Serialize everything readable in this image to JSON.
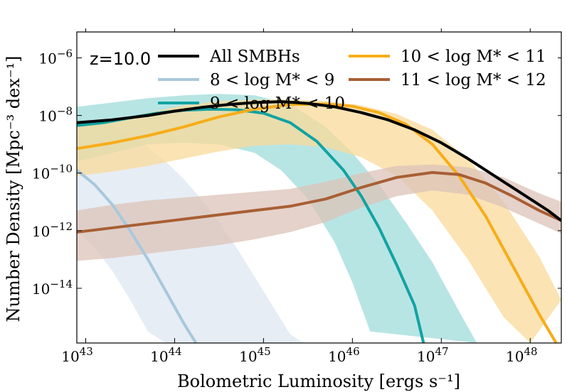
{
  "chart_data": {
    "type": "line",
    "annotation": "z=10.0",
    "xlabel": "Bolometric Luminosity [ergs s⁻¹]",
    "ylabel": "Number Density [Mpc⁻³ dex⁻¹]",
    "xscale": "log",
    "yscale": "log",
    "xlim": [
      42.9,
      48.35
    ],
    "ylim": [
      -15.9,
      -5.1
    ],
    "x_ticks": [
      {
        "value": 43,
        "base": "10",
        "exp": "43"
      },
      {
        "value": 44,
        "base": "10",
        "exp": "44"
      },
      {
        "value": 45,
        "base": "10",
        "exp": "45"
      },
      {
        "value": 46,
        "base": "10",
        "exp": "46"
      },
      {
        "value": 47,
        "base": "10",
        "exp": "47"
      },
      {
        "value": 48,
        "base": "10",
        "exp": "48"
      }
    ],
    "y_ticks": [
      {
        "value": -6,
        "base": "10",
        "exp": "−6"
      },
      {
        "value": -8,
        "base": "10",
        "exp": "−8"
      },
      {
        "value": -10,
        "base": "10",
        "exp": "−10"
      },
      {
        "value": -12,
        "base": "10",
        "exp": "−12"
      },
      {
        "value": -14,
        "base": "10",
        "exp": "−14"
      }
    ],
    "grid": false,
    "legend_placement": "top",
    "series": [
      {
        "name": "All SMBHs",
        "color": "#000000",
        "x": [
          42.9,
          43.3,
          43.7,
          44.0,
          44.3,
          44.6,
          44.9,
          45.2,
          45.5,
          45.8,
          46.1,
          46.4,
          46.7,
          47.0,
          47.3,
          47.6,
          47.9,
          48.2,
          48.35
        ],
        "y": [
          -8.25,
          -8.15,
          -8.0,
          -7.85,
          -7.72,
          -7.62,
          -7.55,
          -7.52,
          -7.58,
          -7.7,
          -7.9,
          -8.15,
          -8.5,
          -8.95,
          -9.5,
          -10.1,
          -10.7,
          -11.3,
          -11.65
        ]
      },
      {
        "name": "8 < log M* < 9",
        "color": "#a8c8dc",
        "band_color": "#dde7f1",
        "x": [
          42.9,
          43.1,
          43.3,
          43.5,
          43.7,
          43.9,
          44.1,
          44.3
        ],
        "y": [
          -9.9,
          -10.4,
          -11.1,
          -12.0,
          -13.0,
          -14.1,
          -15.2,
          -16.2
        ],
        "band_upper": [
          -8.1,
          -8.2,
          -8.4,
          -8.7,
          -9.1,
          -9.6,
          -10.2,
          -10.9,
          -11.7,
          -12.6,
          -13.6,
          -14.6,
          -15.6,
          -16.2
        ],
        "band_lower": [
          -12.0,
          -12.6,
          -13.4,
          -14.4,
          -15.5,
          -16.5
        ],
        "band_x_upper": [
          42.9,
          43.1,
          43.3,
          43.5,
          43.7,
          43.9,
          44.1,
          44.3,
          44.5,
          44.7,
          44.9,
          45.1,
          45.3,
          45.45
        ],
        "band_x_lower": [
          42.9,
          43.1,
          43.3,
          43.5,
          43.7,
          43.9
        ]
      },
      {
        "name": "9 < log M* < 10",
        "color": "#12a3a3",
        "band_color": "#9fdcdb",
        "x": [
          42.9,
          43.2,
          43.5,
          43.8,
          44.1,
          44.4,
          44.7,
          45.0,
          45.3,
          45.6,
          45.9,
          46.1,
          46.3,
          46.5,
          46.7,
          46.8
        ],
        "y": [
          -8.35,
          -8.25,
          -8.08,
          -7.92,
          -7.82,
          -7.78,
          -7.8,
          -7.92,
          -8.25,
          -8.9,
          -9.9,
          -10.8,
          -11.9,
          -13.2,
          -14.6,
          -15.9
        ],
        "band_x_upper": [
          42.9,
          43.3,
          43.7,
          44.1,
          44.5,
          44.9,
          45.3,
          45.7,
          46.0,
          46.3,
          46.6,
          46.9,
          47.2,
          47.4
        ],
        "band_upper": [
          -7.7,
          -7.55,
          -7.4,
          -7.3,
          -7.25,
          -7.3,
          -7.6,
          -8.4,
          -9.3,
          -10.4,
          -11.7,
          -13.1,
          -14.8,
          -16.2
        ],
        "band_x_lower": [
          42.9,
          43.3,
          43.7,
          44.1,
          44.5,
          44.9,
          45.2,
          45.5,
          45.8,
          46.0,
          46.2
        ],
        "band_lower": [
          -9.6,
          -9.3,
          -9.0,
          -8.95,
          -9.0,
          -9.3,
          -9.9,
          -10.9,
          -12.4,
          -13.8,
          -15.5
        ]
      },
      {
        "name": "10 < log M* < 11",
        "color": "#f7ad19",
        "band_color": "#f9d99a",
        "x": [
          42.9,
          43.3,
          43.7,
          44.1,
          44.5,
          44.9,
          45.3,
          45.7,
          46.0,
          46.3,
          46.6,
          46.9,
          47.2,
          47.5,
          47.8,
          48.1,
          48.35
        ],
        "y": [
          -9.15,
          -8.95,
          -8.7,
          -8.4,
          -8.05,
          -7.78,
          -7.62,
          -7.6,
          -7.68,
          -7.9,
          -8.3,
          -9.0,
          -10.1,
          -11.5,
          -13.2,
          -14.9,
          -16.2
        ],
        "band_x_upper": [
          42.9,
          43.3,
          43.7,
          44.1,
          44.5,
          44.9,
          45.3,
          45.7,
          46.1,
          46.5,
          46.9,
          47.3,
          47.7,
          48.1,
          48.35
        ],
        "band_upper": [
          -8.4,
          -8.2,
          -7.9,
          -7.65,
          -7.5,
          -7.45,
          -7.45,
          -7.5,
          -7.65,
          -7.95,
          -8.5,
          -9.5,
          -11.0,
          -12.9,
          -14.4
        ],
        "band_x_lower": [
          42.9,
          43.3,
          43.7,
          44.1,
          44.5,
          44.9,
          45.3,
          45.7,
          46.1,
          46.5,
          46.9,
          47.3,
          47.7,
          48.0
        ],
        "band_lower": [
          -10.1,
          -9.95,
          -9.75,
          -9.5,
          -9.25,
          -9.05,
          -9.0,
          -9.1,
          -9.45,
          -10.1,
          -11.3,
          -13.0,
          -15.0,
          -16.2
        ]
      },
      {
        "name": "11 < log M* < 12",
        "color": "#a85f34",
        "band_color": "#dcc3b8",
        "x": [
          42.9,
          43.3,
          43.7,
          44.1,
          44.5,
          44.9,
          45.3,
          45.7,
          46.1,
          46.5,
          46.9,
          47.2,
          47.5,
          47.8,
          48.1,
          48.35
        ],
        "y": [
          -12.05,
          -11.9,
          -11.75,
          -11.6,
          -11.45,
          -11.3,
          -11.15,
          -10.9,
          -10.5,
          -10.15,
          -9.98,
          -10.05,
          -10.35,
          -10.8,
          -11.3,
          -11.65
        ],
        "band_x_upper": [
          42.9,
          43.3,
          43.7,
          44.1,
          44.5,
          44.9,
          45.3,
          45.7,
          46.1,
          46.5,
          46.9,
          47.3,
          47.7,
          48.1,
          48.35
        ],
        "band_upper": [
          -11.3,
          -11.1,
          -10.95,
          -10.85,
          -10.75,
          -10.65,
          -10.55,
          -10.3,
          -10.0,
          -9.75,
          -9.7,
          -9.8,
          -10.15,
          -10.7,
          -11.0
        ],
        "band_x_lower": [
          42.9,
          43.3,
          43.7,
          44.1,
          44.5,
          44.9,
          45.3,
          45.7,
          46.1,
          46.5,
          46.9,
          47.3,
          47.7,
          48.1,
          48.35
        ],
        "band_lower": [
          -13.05,
          -12.95,
          -12.8,
          -12.65,
          -12.5,
          -12.3,
          -12.05,
          -11.7,
          -11.2,
          -10.8,
          -10.6,
          -10.75,
          -11.2,
          -11.75,
          -12.1
        ]
      }
    ]
  }
}
